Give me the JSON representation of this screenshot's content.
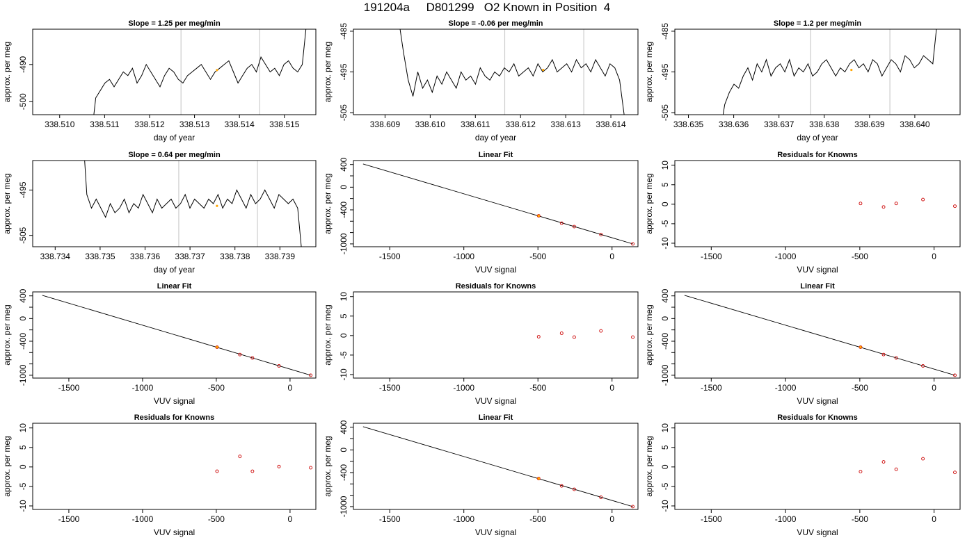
{
  "page_title": "191204a     D801299   O2 Known in Position  4",
  "colors": {
    "trace": "#000000",
    "marker": "#ffa500",
    "residual": "#cc0000",
    "vline": "#cccccc",
    "axis": "#000000"
  },
  "chart_data": [
    {
      "type": "line",
      "title": "Slope =  1.25  per meg/min",
      "xlabel": "day of year",
      "ylabel": "approx. per meg",
      "xlim": [
        338.5094,
        338.5157
      ],
      "ylim": [
        -503.5,
        -480.5
      ],
      "xticks": [
        "338.510",
        "338.511",
        "338.512",
        "338.513",
        "338.514",
        "338.515"
      ],
      "yticks": [
        "-500",
        "-490"
      ],
      "vlines": [
        338.5127,
        338.51445
      ],
      "series": [
        {
          "x_start": 338.5107,
          "x_end": 338.5155,
          "values": [
            -510,
            -499,
            -497,
            -495,
            -494,
            -496,
            -494,
            -492,
            -493,
            -491,
            -495,
            -493,
            -490,
            -492,
            -494,
            -496,
            -493,
            -491,
            -492,
            -494,
            -495,
            -493,
            -492,
            -491,
            -490,
            -492,
            -494,
            -492,
            -491,
            -490,
            -489,
            -492,
            -495,
            -493,
            -491,
            -490,
            -492,
            -488,
            -490,
            -492,
            -491,
            -493,
            -490,
            -489,
            -491,
            -492,
            -490,
            -478
          ]
        }
      ],
      "marker": {
        "x": 338.5135,
        "y": -491.5
      }
    },
    {
      "type": "line",
      "title": "Slope =  -0.06  per meg/min",
      "xlabel": "day of year",
      "ylabel": "approx. per meg",
      "xlim": [
        338.6083,
        338.6146
      ],
      "ylim": [
        -505.5,
        -484.5
      ],
      "xticks": [
        "338.609",
        "338.610",
        "338.611",
        "338.612",
        "338.613",
        "338.614"
      ],
      "yticks": [
        "-505",
        "-495",
        "-485"
      ],
      "vlines": [
        338.61165,
        338.6134
      ],
      "series": [
        {
          "x_start": 338.6093,
          "x_end": 338.6143,
          "values": [
            -482,
            -490,
            -497,
            -501,
            -495,
            -499,
            -497,
            -500,
            -496,
            -498,
            -495,
            -497,
            -499,
            -495,
            -497,
            -496,
            -498,
            -494,
            -496,
            -497,
            -495,
            -496,
            -494,
            -495,
            -493,
            -496,
            -495,
            -494,
            -496,
            -493,
            -495,
            -494,
            -492,
            -495,
            -494,
            -493,
            -495,
            -492,
            -494,
            -493,
            -495,
            -492,
            -494,
            -496,
            -493,
            -494,
            -497,
            -506
          ]
        }
      ],
      "marker": {
        "x": 338.6125,
        "y": -494.5
      }
    },
    {
      "type": "line",
      "title": "Slope =  1.2  per meg/min",
      "xlabel": "day of year",
      "ylabel": "approx. per meg",
      "xlim": [
        338.6347,
        338.641
      ],
      "ylim": [
        -505.5,
        -484.5
      ],
      "xticks": [
        "338.635",
        "338.636",
        "338.637",
        "338.638",
        "338.639",
        "338.640"
      ],
      "yticks": [
        "-505",
        "-495",
        "-485"
      ],
      "vlines": [
        338.6377,
        338.63945
      ],
      "series": [
        {
          "x_start": 338.6357,
          "x_end": 338.6405,
          "values": [
            -510,
            -503,
            -500,
            -498,
            -499,
            -496,
            -494,
            -497,
            -493,
            -495,
            -492,
            -496,
            -494,
            -493,
            -495,
            -492,
            -496,
            -494,
            -495,
            -493,
            -496,
            -495,
            -493,
            -492,
            -494,
            -496,
            -494,
            -495,
            -493,
            -492,
            -494,
            -493,
            -495,
            -492,
            -493,
            -496,
            -494,
            -492,
            -493,
            -495,
            -491,
            -492,
            -494,
            -493,
            -491,
            -492,
            -493,
            -482
          ]
        }
      ],
      "marker": {
        "x": 338.6386,
        "y": -494.5
      }
    },
    {
      "type": "line",
      "title": "Slope =  0.64  per meg/min",
      "xlabel": "day of year",
      "ylabel": "approx. per meg",
      "xlim": [
        338.7335,
        338.7398
      ],
      "ylim": [
        -507.5,
        -488.5
      ],
      "xticks": [
        "338.734",
        "338.735",
        "338.736",
        "338.737",
        "338.738",
        "338.739"
      ],
      "yticks": [
        "-505",
        "-495"
      ],
      "vlines": [
        338.73675,
        338.7385
      ],
      "series": [
        {
          "x_start": 338.7346,
          "x_end": 338.7395,
          "values": [
            -480,
            -496,
            -499,
            -497,
            -499,
            -501,
            -498,
            -500,
            -499,
            -497,
            -500,
            -498,
            -499,
            -496,
            -498,
            -500,
            -497,
            -499,
            -498,
            -497,
            -499,
            -498,
            -496,
            -499,
            -497,
            -498,
            -499,
            -497,
            -498,
            -496,
            -499,
            -497,
            -498,
            -495,
            -497,
            -499,
            -496,
            -498,
            -497,
            -495,
            -497,
            -499,
            -496,
            -497,
            -498,
            -497,
            -499,
            -510
          ]
        }
      ],
      "marker": {
        "x": 338.7376,
        "y": -498.5
      }
    },
    {
      "type": "scatter",
      "title": "Linear Fit",
      "xlabel": "VUV signal",
      "ylabel": "approx. per meg",
      "xlim": [
        -1745,
        175
      ],
      "ylim": [
        -1050,
        470
      ],
      "xticks": [
        -1500,
        -1000,
        -500,
        0
      ],
      "yticks": [
        -1000,
        -800,
        -600,
        -400,
        -200,
        0,
        200,
        400
      ],
      "yticklabels": [
        "-1000",
        "",
        "",
        "-400",
        "",
        "0",
        "",
        "400"
      ],
      "fit_line": {
        "x": [
          -1680,
          140
        ],
        "y": [
          410,
          -1000
        ]
      },
      "points": {
        "x": [
          -495,
          -340,
          -255,
          -75,
          140
        ],
        "y": [
          -505,
          -635,
          -695,
          -835,
          -1000
        ]
      },
      "highlight": {
        "x": -495,
        "y": -505
      }
    },
    {
      "type": "scatter",
      "title": "Residuals for Knowns",
      "xlabel": "VUV signal",
      "ylabel": "approx. per meg",
      "xlim": [
        -1745,
        175
      ],
      "ylim": [
        -10.9,
        11.2
      ],
      "xticks": [
        -1500,
        -1000,
        -500,
        0
      ],
      "yticks": [
        -10,
        -5,
        0,
        5,
        10
      ],
      "points": {
        "x": [
          -495,
          -340,
          -255,
          -75,
          140
        ],
        "y": [
          0.2,
          -0.7,
          0.2,
          1.2,
          -0.5
        ]
      }
    },
    {
      "type": "scatter",
      "title": "Linear Fit",
      "xlabel": "VUV signal",
      "ylabel": "approx. per meg",
      "xlim": [
        -1745,
        175
      ],
      "ylim": [
        -1050,
        470
      ],
      "xticks": [
        -1500,
        -1000,
        -500,
        0
      ],
      "yticks": [
        -1000,
        -800,
        -600,
        -400,
        -200,
        0,
        200,
        400
      ],
      "yticklabels": [
        "-1000",
        "",
        "",
        "-400",
        "",
        "0",
        "",
        "400"
      ],
      "fit_line": {
        "x": [
          -1680,
          140
        ],
        "y": [
          410,
          -1000
        ]
      },
      "points": {
        "x": [
          -495,
          -340,
          -255,
          -75,
          140
        ],
        "y": [
          -505,
          -635,
          -695,
          -835,
          -1000
        ]
      },
      "highlight": {
        "x": -495,
        "y": -505
      }
    },
    {
      "type": "scatter",
      "title": "Residuals for Knowns",
      "xlabel": "VUV signal",
      "ylabel": "approx. per meg",
      "xlim": [
        -1745,
        175
      ],
      "ylim": [
        -10.9,
        11.2
      ],
      "xticks": [
        -1500,
        -1000,
        -500,
        0
      ],
      "yticks": [
        -10,
        -5,
        0,
        5,
        10
      ],
      "points": {
        "x": [
          -495,
          -340,
          -255,
          -75,
          140
        ],
        "y": [
          -0.3,
          0.6,
          -0.4,
          1.2,
          -0.4
        ]
      }
    },
    {
      "type": "scatter",
      "title": "Linear Fit",
      "xlabel": "VUV signal",
      "ylabel": "approx. per meg",
      "xlim": [
        -1745,
        175
      ],
      "ylim": [
        -1050,
        470
      ],
      "xticks": [
        -1500,
        -1000,
        -500,
        0
      ],
      "yticks": [
        -1000,
        -800,
        -600,
        -400,
        -200,
        0,
        200,
        400
      ],
      "yticklabels": [
        "-1000",
        "",
        "",
        "-400",
        "",
        "0",
        "",
        "400"
      ],
      "fit_line": {
        "x": [
          -1680,
          140
        ],
        "y": [
          410,
          -1000
        ]
      },
      "points": {
        "x": [
          -495,
          -340,
          -255,
          -75,
          140
        ],
        "y": [
          -505,
          -635,
          -695,
          -835,
          -1000
        ]
      },
      "highlight": {
        "x": -495,
        "y": -505
      }
    },
    {
      "type": "scatter",
      "title": "Residuals for Knowns",
      "xlabel": "VUV signal",
      "ylabel": "approx. per meg",
      "xlim": [
        -1745,
        175
      ],
      "ylim": [
        -10.9,
        11.2
      ],
      "xticks": [
        -1500,
        -1000,
        -500,
        0
      ],
      "yticks": [
        -10,
        -5,
        0,
        5,
        10
      ],
      "points": {
        "x": [
          -495,
          -340,
          -255,
          -75,
          140
        ],
        "y": [
          -1.1,
          2.7,
          -1.1,
          0.1,
          -0.2
        ]
      }
    },
    {
      "type": "scatter",
      "title": "Linear Fit",
      "xlabel": "VUV signal",
      "ylabel": "approx. per meg",
      "xlim": [
        -1745,
        175
      ],
      "ylim": [
        -1050,
        470
      ],
      "xticks": [
        -1500,
        -1000,
        -500,
        0
      ],
      "yticks": [
        -1000,
        -800,
        -600,
        -400,
        -200,
        0,
        200,
        400
      ],
      "yticklabels": [
        "-1000",
        "",
        "",
        "-400",
        "",
        "0",
        "",
        "400"
      ],
      "fit_line": {
        "x": [
          -1680,
          140
        ],
        "y": [
          410,
          -1000
        ]
      },
      "points": {
        "x": [
          -495,
          -340,
          -255,
          -75,
          140
        ],
        "y": [
          -505,
          -635,
          -695,
          -835,
          -1000
        ]
      },
      "highlight": {
        "x": -495,
        "y": -505
      }
    },
    {
      "type": "scatter",
      "title": "Residuals for Knowns",
      "xlabel": "VUV signal",
      "ylabel": "approx. per meg",
      "xlim": [
        -1745,
        175
      ],
      "ylim": [
        -10.9,
        11.2
      ],
      "xticks": [
        -1500,
        -1000,
        -500,
        0
      ],
      "yticks": [
        -10,
        -5,
        0,
        5,
        10
      ],
      "points": {
        "x": [
          -495,
          -340,
          -255,
          -75,
          140
        ],
        "y": [
          -1.2,
          1.3,
          -0.6,
          2.1,
          -1.4
        ]
      }
    }
  ]
}
